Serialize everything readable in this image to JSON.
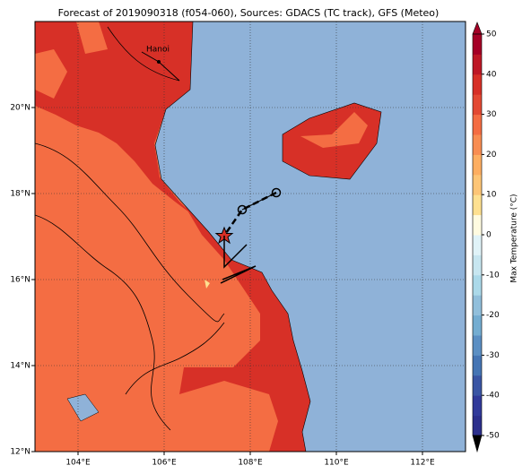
{
  "title": "Forecast of 2019090318 (f054-060), Sources: GDACS (TC track), GFS (Meteo)",
  "map": {
    "xlim": [
      103,
      113
    ],
    "ylim": [
      12,
      22
    ],
    "xticks": [
      {
        "value": 104,
        "label": "104°E"
      },
      {
        "value": 106,
        "label": "106°E"
      },
      {
        "value": 108,
        "label": "108°E"
      },
      {
        "value": 110,
        "label": "110°E"
      },
      {
        "value": 112,
        "label": "112°E"
      }
    ],
    "yticks": [
      {
        "value": 12,
        "label": "12°N"
      },
      {
        "value": 14,
        "label": "14°N"
      },
      {
        "value": 16,
        "label": "16°N"
      },
      {
        "value": 18,
        "label": "18°N"
      },
      {
        "value": 20,
        "label": "20°N"
      }
    ],
    "place": "Hanoi"
  },
  "colorbar": {
    "label": "Max Temperature (°C)",
    "lim": [
      -50,
      50
    ],
    "ticks": [
      -50,
      -40,
      -30,
      -20,
      -10,
      0,
      10,
      20,
      30,
      40,
      50
    ],
    "colors": [
      "#2c2f8c",
      "#313a9a",
      "#3a55a4",
      "#4575b4",
      "#5b8fc3",
      "#74add1",
      "#91bfdb",
      "#abd9e9",
      "#c7e6f0",
      "#e0f3f8",
      "#fffbe0",
      "#fee090",
      "#fdc576",
      "#fdae61",
      "#f88d52",
      "#f46d43",
      "#e34933",
      "#d73027",
      "#be1826",
      "#a50026"
    ]
  }
}
